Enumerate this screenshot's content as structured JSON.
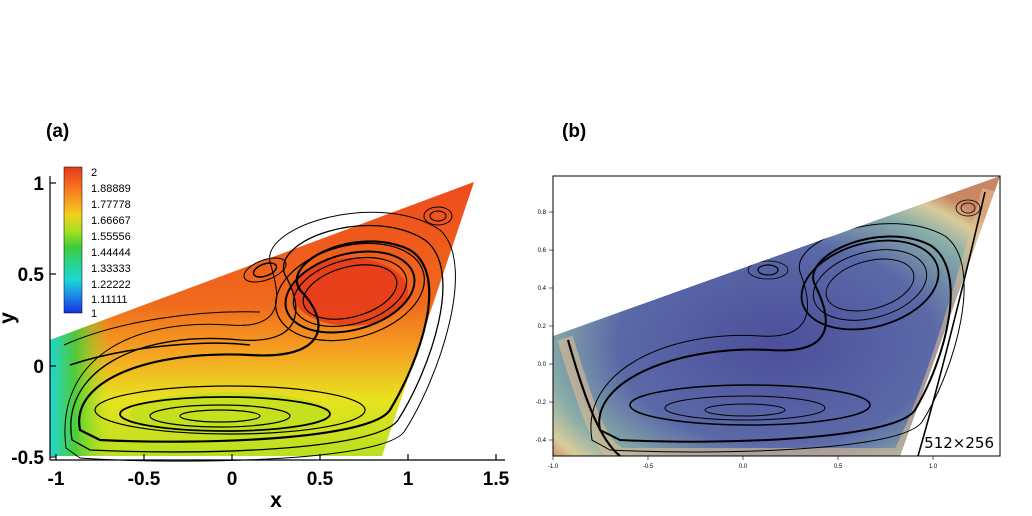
{
  "figure": {
    "panels": [
      {
        "id": "a",
        "label": "(a)",
        "xlabel": "x",
        "ylabel": "y",
        "x_ticks": [
          "-1",
          "-0.5",
          "0",
          "0.5",
          "1",
          "1.5"
        ],
        "y_ticks": [
          "1",
          "0.5",
          "0",
          "-0.5"
        ],
        "legend_levels": [
          "2",
          "1.88889",
          "1.77778",
          "1.66667",
          "1.55556",
          "1.44444",
          "1.33333",
          "1.22222",
          "1.11111",
          "1"
        ],
        "colormap": [
          "#e8391a",
          "#f3661e",
          "#f79a22",
          "#f2d21e",
          "#a4e01f",
          "#3fcc3a",
          "#2ad28c",
          "#1fd8d2",
          "#1c8be8",
          "#1730e0"
        ]
      },
      {
        "id": "b",
        "label": "(b)",
        "x_ticks": [
          "-1.0",
          "-0.5",
          "0.0",
          "0.5",
          "1.0"
        ],
        "y_ticks": [
          "0.8",
          "0.6",
          "0.4",
          "0.2",
          "0.0",
          "-0.2",
          "-0.4"
        ],
        "resolution_label": "512×256"
      }
    ]
  }
}
